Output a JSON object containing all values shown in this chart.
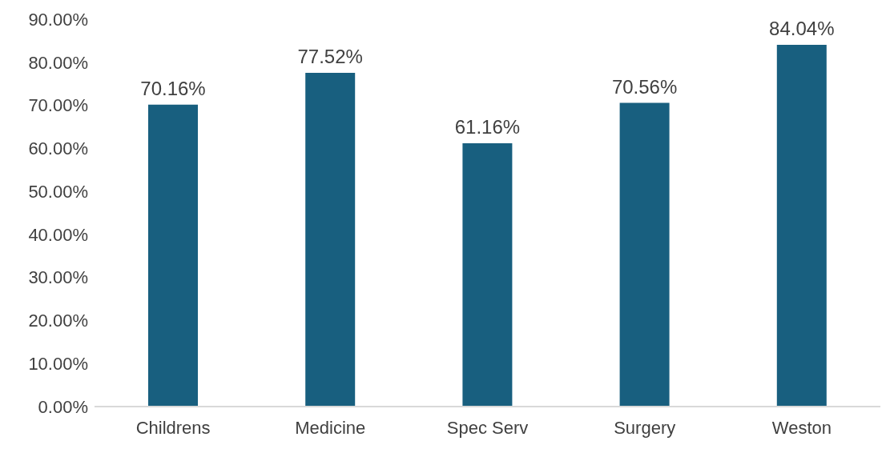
{
  "chart_data": {
    "type": "bar",
    "categories": [
      "Childrens",
      "Medicine",
      "Spec Serv",
      "Surgery",
      "Weston"
    ],
    "values": [
      70.16,
      77.52,
      61.16,
      70.56,
      84.04
    ],
    "value_labels": [
      "70.16%",
      "77.52%",
      "61.16%",
      "70.56%",
      "84.04%"
    ],
    "color": "#185f7f",
    "ylim": [
      0,
      90
    ],
    "yticks": [
      {
        "value": 0,
        "label": "0.00%"
      },
      {
        "value": 10,
        "label": "10.00%"
      },
      {
        "value": 20,
        "label": "20.00%"
      },
      {
        "value": 30,
        "label": "30.00%"
      },
      {
        "value": 40,
        "label": "40.00%"
      },
      {
        "value": 50,
        "label": "50.00%"
      },
      {
        "value": 60,
        "label": "60.00%"
      },
      {
        "value": 70,
        "label": "70.00%"
      },
      {
        "value": 80,
        "label": "80.00%"
      },
      {
        "value": 90,
        "label": "90.00%"
      }
    ],
    "grid": false,
    "legend": false
  }
}
